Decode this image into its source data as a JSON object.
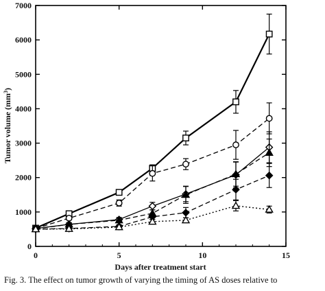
{
  "chart_data": {
    "type": "line",
    "xlabel": "Days after treatment start",
    "ylabel": "Tumor volume (mm3)",
    "xlim": [
      0,
      15
    ],
    "ylim": [
      0,
      7000
    ],
    "xticks": [
      0,
      5,
      10,
      15
    ],
    "yticks": [
      0,
      1000,
      2000,
      3000,
      4000,
      5000,
      6000,
      7000
    ],
    "grid": false,
    "series": [
      {
        "marker": "open-square",
        "line": "solid",
        "width": 2.2,
        "x": [
          0,
          2,
          5,
          7,
          9,
          12,
          14
        ],
        "y": [
          530,
          950,
          1570,
          2270,
          3150,
          4200,
          6170
        ],
        "err": [
          50,
          60,
          70,
          100,
          200,
          330,
          580
        ]
      },
      {
        "marker": "open-circle",
        "line": "dashed",
        "width": 1.3,
        "x": [
          0,
          2,
          5,
          7,
          9,
          12,
          14
        ],
        "y": [
          520,
          820,
          1260,
          2120,
          2390,
          2950,
          3720
        ],
        "err": [
          40,
          50,
          90,
          220,
          160,
          420,
          450
        ]
      },
      {
        "marker": "open-diamond",
        "line": "solid",
        "width": 1.3,
        "x": [
          0,
          2,
          5,
          7,
          9,
          12,
          14
        ],
        "y": [
          520,
          640,
          780,
          1170,
          1520,
          2080,
          2880
        ],
        "err": [
          40,
          50,
          60,
          110,
          220,
          380,
          450
        ]
      },
      {
        "marker": "filled-triangle",
        "line": "dashed",
        "width": 1.3,
        "x": [
          0,
          2,
          5,
          7,
          9,
          12,
          14
        ],
        "y": [
          510,
          640,
          760,
          960,
          1500,
          2100,
          2720
        ],
        "err": [
          40,
          50,
          60,
          100,
          250,
          350,
          400
        ]
      },
      {
        "marker": "filled-diamond",
        "line": "dashed",
        "width": 1.3,
        "x": [
          0,
          2,
          5,
          7,
          9,
          12,
          14
        ],
        "y": [
          500,
          520,
          580,
          860,
          980,
          1650,
          2060
        ],
        "err": [
          30,
          40,
          50,
          80,
          150,
          300,
          350
        ]
      },
      {
        "marker": "open-triangle",
        "line": "dotted",
        "width": 1.4,
        "x": [
          0,
          2,
          5,
          7,
          9,
          12,
          14
        ],
        "y": [
          500,
          510,
          560,
          720,
          760,
          1180,
          1070
        ],
        "err": [
          30,
          40,
          40,
          60,
          70,
          150,
          100
        ]
      }
    ]
  },
  "caption": "Fig. 3. The effect on tumor growth of varying the timing of AS doses relative to"
}
